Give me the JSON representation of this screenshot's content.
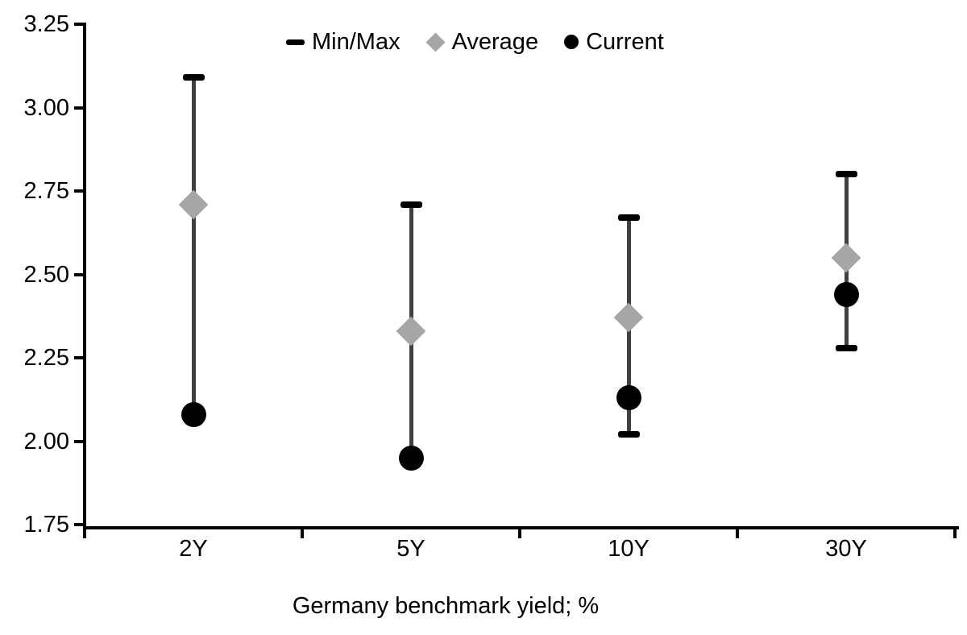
{
  "chart_data": {
    "type": "scatter",
    "variant": "min-max-range-with-markers",
    "title": "",
    "xlabel": "Germany benchmark yield; %",
    "ylabel": "",
    "categories": [
      "2Y",
      "5Y",
      "10Y",
      "30Y"
    ],
    "series": [
      {
        "name": "Min/Max",
        "marker": "dash",
        "color": "#000000",
        "min": [
          2.08,
          1.95,
          2.02,
          2.28
        ],
        "max": [
          3.09,
          2.71,
          2.67,
          2.8
        ]
      },
      {
        "name": "Average",
        "marker": "diamond",
        "color": "#a6a6a6",
        "values": [
          2.71,
          2.33,
          2.37,
          2.55
        ]
      },
      {
        "name": "Current",
        "marker": "circle",
        "color": "#000000",
        "values": [
          2.08,
          1.95,
          2.13,
          2.44
        ]
      }
    ],
    "ylim": [
      1.75,
      3.25
    ],
    "ytick_step": 0.25,
    "yticks": [
      "3.25",
      "3.00",
      "2.75",
      "2.50",
      "2.25",
      "2.00",
      "1.75"
    ],
    "colors": {
      "whisker": "#404040",
      "axis": "#000000",
      "text": "#000000"
    },
    "legend_position": "top-center",
    "grid": false
  }
}
